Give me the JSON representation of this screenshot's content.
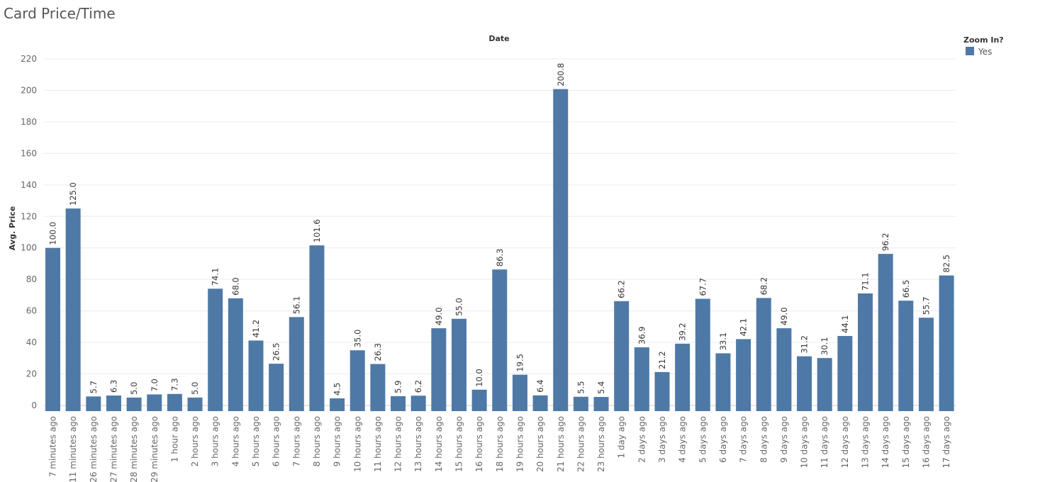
{
  "header": {
    "title": "Card Price/Time"
  },
  "chart_data": {
    "type": "bar",
    "title": "Card Price/Time",
    "xlabel": "Date",
    "ylabel": "Avg. Price",
    "ylim": [
      0,
      220
    ],
    "yticks": [
      0,
      20,
      40,
      60,
      80,
      100,
      120,
      140,
      160,
      180,
      200,
      220
    ],
    "grid": true,
    "legend": {
      "title": "Zoom In?",
      "placement": "top-right",
      "entries": [
        {
          "label": "Yes",
          "color": "#4e79a7"
        }
      ]
    },
    "bar_color": "#4e79a7",
    "categories": [
      "7 minutes ago",
      "11 minutes ago",
      "26 minutes ago",
      "27 minutes ago",
      "28 minutes ago",
      "29 minutes ago",
      "1 hour ago",
      "2 hours ago",
      "3 hours ago",
      "4 hours ago",
      "5 hours ago",
      "6 hours ago",
      "7 hours ago",
      "8 hours ago",
      "9 hours ago",
      "10 hours ago",
      "11 hours ago",
      "12 hours ago",
      "13 hours ago",
      "14 hours ago",
      "15 hours ago",
      "16 hours ago",
      "18 hours ago",
      "19 hours ago",
      "20 hours ago",
      "21 hours ago",
      "22 hours ago",
      "23 hours ago",
      "1 day ago",
      "2 days ago",
      "3 days ago",
      "4 days ago",
      "5 days ago",
      "6 days ago",
      "7 days ago",
      "8 days ago",
      "9 days ago",
      "10 days ago",
      "11 days ago",
      "12 days ago",
      "13 days ago",
      "14 days ago",
      "15 days ago",
      "16 days ago",
      "17 days ago"
    ],
    "values": [
      100.0,
      125.0,
      5.7,
      6.3,
      5.0,
      7.0,
      7.3,
      5.0,
      74.1,
      68.0,
      41.2,
      26.5,
      56.1,
      101.6,
      4.5,
      35.0,
      26.3,
      5.9,
      6.2,
      49.0,
      55.0,
      10.0,
      86.3,
      19.5,
      6.4,
      200.8,
      5.5,
      5.4,
      66.2,
      36.9,
      21.2,
      39.2,
      67.7,
      33.1,
      42.1,
      68.2,
      49.0,
      31.2,
      30.1,
      44.1,
      71.1,
      96.2,
      66.5,
      55.7,
      82.5
    ],
    "data_labels": [
      "100.0",
      "125.0",
      "5.7",
      "6.3",
      "5.0",
      "7.0",
      "7.3",
      "5.0",
      "74.1",
      "68.0",
      "41.2",
      "26.5",
      "56.1",
      "101.6",
      "4.5",
      "35.0",
      "26.3",
      "5.9",
      "6.2",
      "49.0",
      "55.0",
      "10.0",
      "86.3",
      "19.5",
      "6.4",
      "200.8",
      "5.5",
      "5.4",
      "66.2",
      "36.9",
      "21.2",
      "39.2",
      "67.7",
      "33.1",
      "42.1",
      "68.2",
      "49.0",
      "31.2",
      "30.1",
      "44.1",
      "71.1",
      "96.2",
      "66.5",
      "55.7",
      "82.5"
    ]
  }
}
